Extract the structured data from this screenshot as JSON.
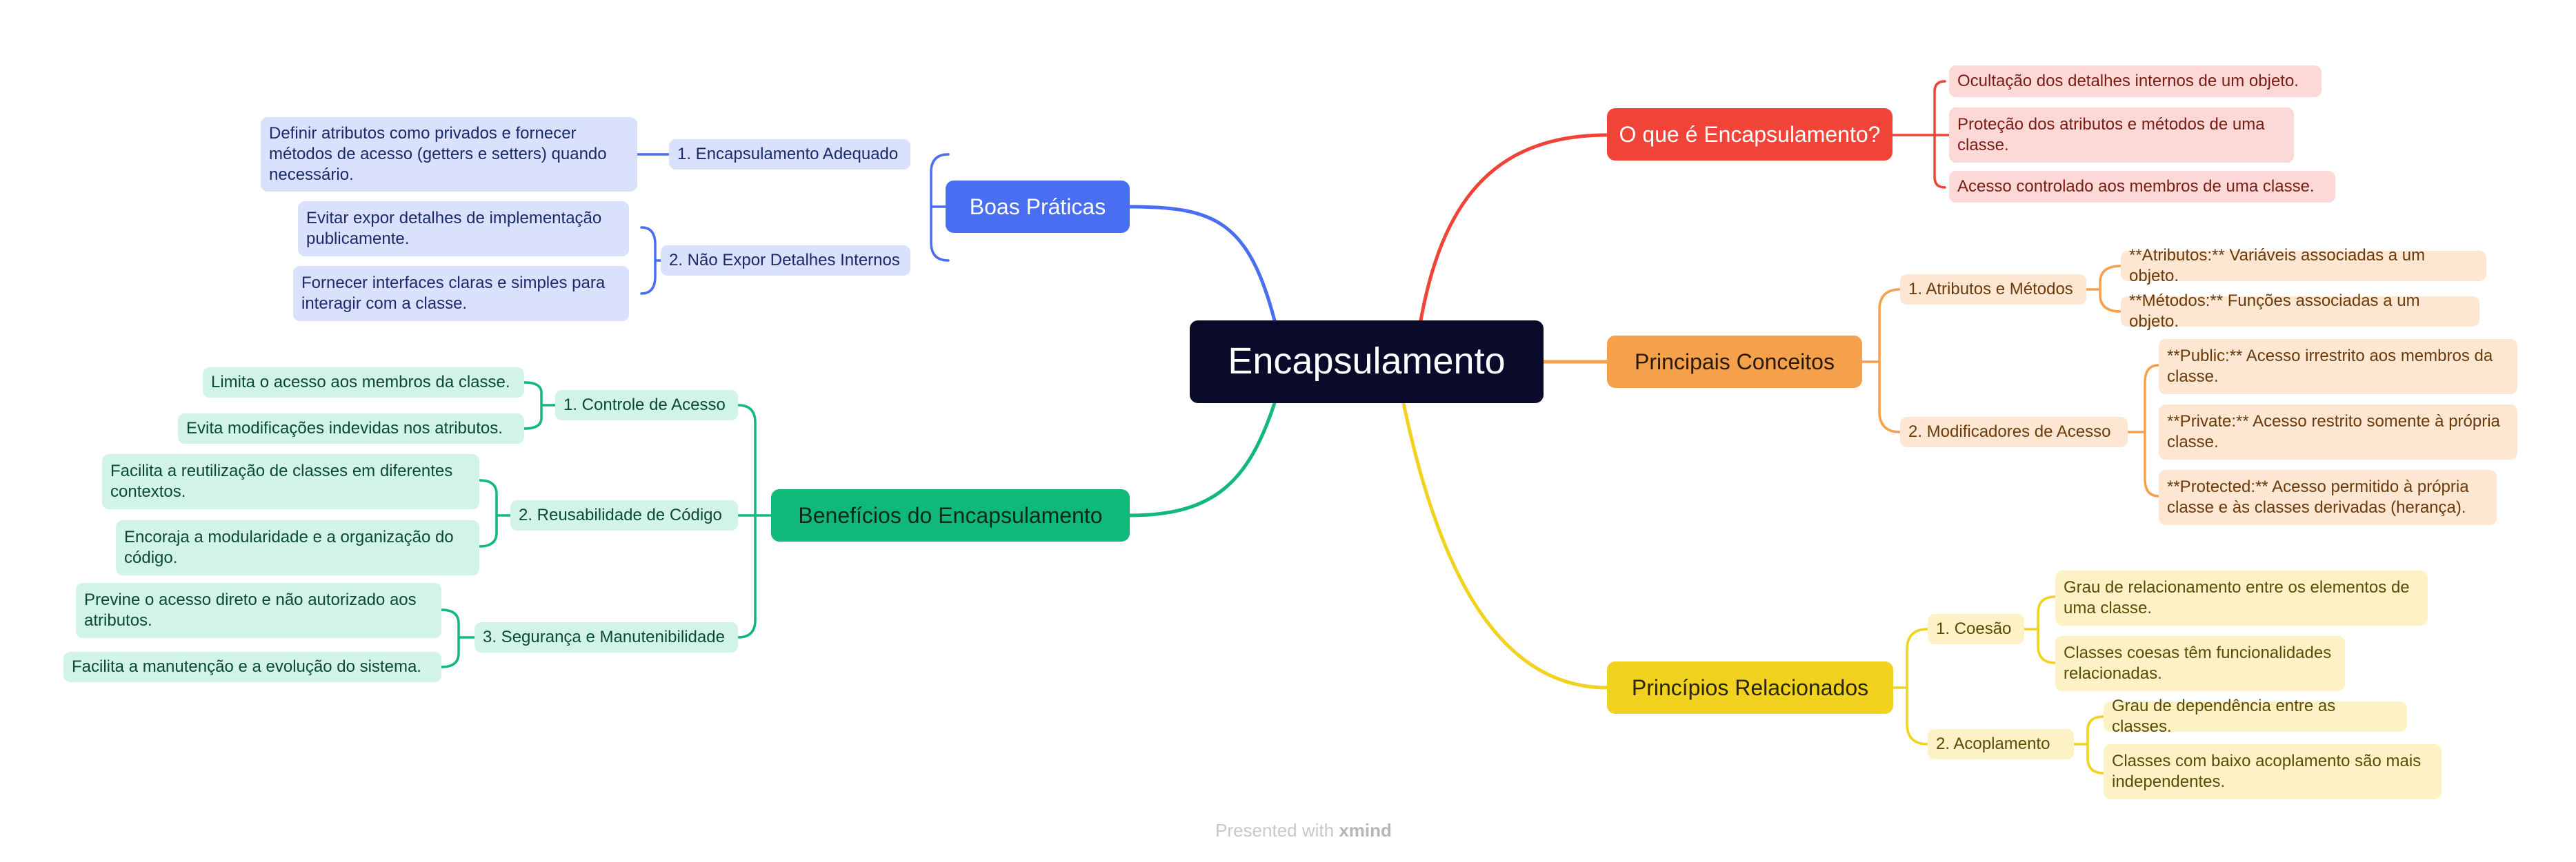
{
  "central": "Encapsulamento",
  "colors": {
    "red": "#ef4437",
    "orange": "#f5a04a",
    "yellow": "#f1d21f",
    "blue": "#4a6ef2",
    "green": "#10b97a",
    "dark": "#0a0a2a"
  },
  "branches": {
    "what": {
      "title": "O que é Encapsulamento?",
      "items": [
        "Ocultação dos detalhes internos de um objeto.",
        "Proteção dos atributos e métodos de uma classe.",
        "Acesso controlado aos membros de uma classe."
      ]
    },
    "concepts": {
      "title": "Principais Conceitos",
      "sub1": {
        "title": "1. Atributos e Métodos",
        "items": [
          "**Atributos:** Variáveis associadas a um objeto.",
          "**Métodos:** Funções associadas a um objeto."
        ]
      },
      "sub2": {
        "title": "2. Modificadores de Acesso",
        "items": [
          "**Public:** Acesso irrestrito aos membros da classe.",
          "**Private:** Acesso restrito somente à própria classe.",
          "**Protected:** Acesso permitido à própria classe e às classes derivadas (herança)."
        ]
      }
    },
    "principles": {
      "title": "Princípios Relacionados",
      "sub1": {
        "title": "1. Coesão",
        "items": [
          "Grau de relacionamento entre os elementos de uma classe.",
          "Classes coesas têm funcionalidades relacionadas."
        ]
      },
      "sub2": {
        "title": "2. Acoplamento",
        "items": [
          "Grau de dependência entre as classes.",
          "Classes com baixo acoplamento são mais independentes."
        ]
      }
    },
    "practices": {
      "title": "Boas Práticas",
      "sub1": {
        "title": "1. Encapsulamento Adequado",
        "items": [
          "Definir atributos como privados e fornecer métodos de acesso (getters e setters) quando necessário."
        ]
      },
      "sub2": {
        "title": "2. Não Expor Detalhes Internos",
        "items": [
          "Evitar expor detalhes de implementação publicamente.",
          "Fornecer interfaces claras e simples para interagir com a classe."
        ]
      }
    },
    "benefits": {
      "title": "Benefícios do Encapsulamento",
      "sub1": {
        "title": "1. Controle de Acesso",
        "items": [
          "Limita o acesso aos membros da classe.",
          "Evita modificações indevidas nos atributos."
        ]
      },
      "sub2": {
        "title": "2. Reusabilidade de Código",
        "items": [
          "Facilita a reutilização de classes em diferentes contextos.",
          "Encoraja a modularidade e a organização do código."
        ]
      },
      "sub3": {
        "title": "3. Segurança e Manutenibilidade",
        "items": [
          "Previne o acesso direto e não autorizado aos atributos.",
          "Facilita a manutenção e a evolução do sistema."
        ]
      }
    }
  },
  "footer": {
    "prefix": "Presented with",
    "brand": "xmind"
  }
}
